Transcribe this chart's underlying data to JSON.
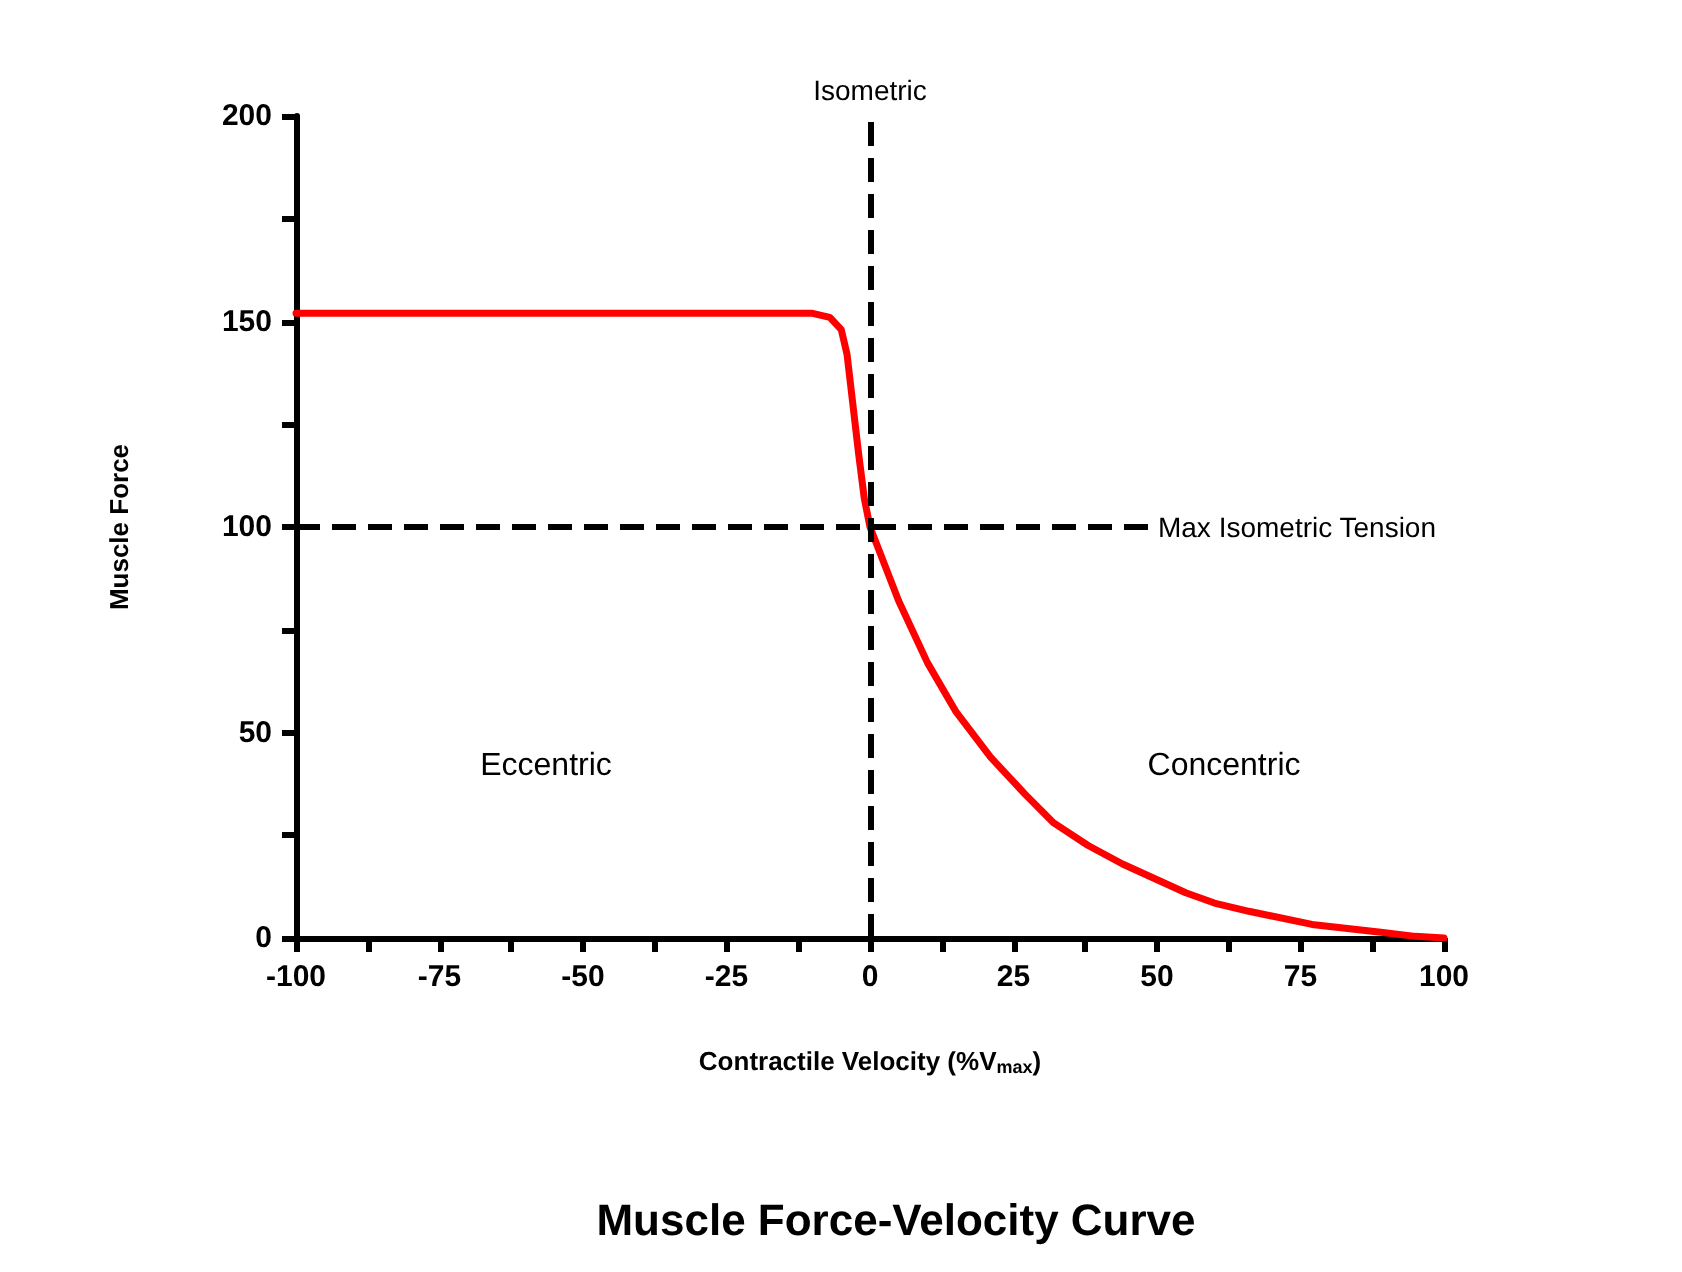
{
  "chart_data": {
    "type": "line",
    "title": "Muscle Force-Velocity Curve",
    "xlabel": "Contractile Velocity (%V$_{max}$)",
    "ylabel": "Muscle Force",
    "x": [
      -100,
      -10,
      -7,
      -5,
      -4,
      -3,
      -2,
      -1,
      0,
      5,
      10,
      15,
      21,
      27,
      32,
      38,
      44,
      55,
      60,
      66,
      77,
      89,
      95,
      100
    ],
    "series": [
      {
        "color": "#ff0000",
        "values": [
          152,
          152,
          151,
          148,
          142,
          130,
          118,
          107,
          100,
          82,
          67,
          55,
          44,
          35,
          28,
          22.5,
          18,
          11,
          8.5,
          6.5,
          3.3,
          1.4,
          0.4,
          0
        ]
      }
    ],
    "xlim": [
      -100,
      100
    ],
    "xticks": [
      -100,
      {
        "value": -87.5,
        "label": null
      },
      -75,
      {
        "value": -62.5,
        "label": null
      },
      -50,
      {
        "value": -37.5,
        "label": null
      },
      -25,
      {
        "value": -12.5,
        "label": null
      },
      0,
      {
        "value": 12.5,
        "label": null
      },
      25,
      {
        "value": 37.5,
        "label": null
      },
      50,
      {
        "value": 62.5,
        "label": null
      },
      75,
      {
        "value": 87.5,
        "label": null
      },
      100
    ],
    "ylim": [
      0,
      200
    ],
    "yticks": [
      0,
      {
        "value": 25,
        "label": null
      },
      50,
      {
        "value": 75,
        "label": null
      },
      100,
      {
        "value": 125,
        "label": null
      },
      150,
      {
        "value": 175,
        "label": null
      },
      200
    ],
    "ref_lines": [
      {
        "axis": "x",
        "value": 0,
        "label": "Isometric",
        "color": "#000000",
        "line_style": "dashed"
      },
      {
        "axis": "y",
        "value": 100,
        "label": "Max Isometric Tension",
        "color": "#000000",
        "line_style": "dashed"
      }
    ],
    "annotations": [
      "Eccentric",
      "Concentric"
    ],
    "grid": false,
    "marker": "none",
    "line_style": "solid"
  }
}
